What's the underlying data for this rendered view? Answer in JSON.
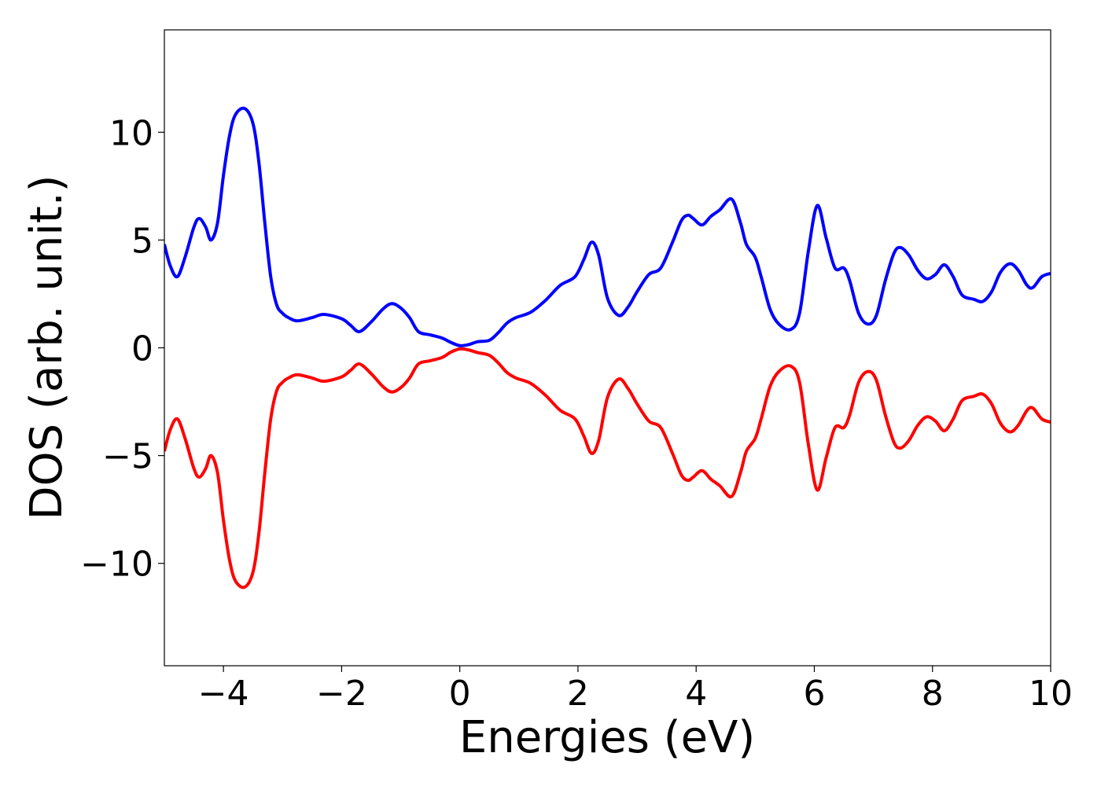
{
  "chart_data": {
    "type": "line",
    "xlabel": "Energies (eV)",
    "ylabel": "DOS (arb. unit.)",
    "x": [
      -5,
      -4.9,
      -4.78,
      -4.65,
      -4.5,
      -4.41,
      -4.3,
      -4.21,
      -4.1,
      -4.0,
      -3.9,
      -3.8,
      -3.64,
      -3.5,
      -3.4,
      -3.3,
      -3.2,
      -3.1,
      -3.0,
      -2.9,
      -2.75,
      -2.5,
      -2.3,
      -2.0,
      -1.85,
      -1.7,
      -1.5,
      -1.3,
      -1.15,
      -1.0,
      -0.85,
      -0.7,
      -0.5,
      -0.3,
      -0.15,
      0,
      0.15,
      0.3,
      0.5,
      0.65,
      0.8,
      0.95,
      1.2,
      1.45,
      1.7,
      1.95,
      2.1,
      2.23,
      2.35,
      2.5,
      2.69,
      2.85,
      3.0,
      3.2,
      3.4,
      3.6,
      3.75,
      3.86,
      3.95,
      4.1,
      4.25,
      4.4,
      4.6,
      4.75,
      4.85,
      5.0,
      5.1,
      5.25,
      5.4,
      5.6,
      5.75,
      5.9,
      6.05,
      6.2,
      6.35,
      6.5,
      6.6,
      6.75,
      6.91,
      7.05,
      7.2,
      7.35,
      7.46,
      7.6,
      7.75,
      7.9,
      8.05,
      8.2,
      8.35,
      8.5,
      8.7,
      8.85,
      9.0,
      9.15,
      9.31,
      9.45,
      9.6,
      9.7,
      9.85,
      10
    ],
    "series": [
      {
        "color": "#0000ff",
        "values": [
          4.8,
          3.8,
          3.3,
          4.2,
          5.6,
          6.0,
          5.6,
          5.0,
          5.8,
          8.0,
          9.8,
          10.8,
          11.1,
          10.4,
          8.6,
          5.8,
          3.3,
          2.0,
          1.6,
          1.4,
          1.25,
          1.4,
          1.55,
          1.35,
          1.05,
          0.75,
          1.2,
          1.8,
          2.05,
          1.85,
          1.4,
          0.75,
          0.6,
          0.45,
          0.25,
          0.1,
          0.15,
          0.28,
          0.35,
          0.7,
          1.15,
          1.4,
          1.65,
          2.2,
          2.9,
          3.3,
          4.1,
          4.9,
          4.3,
          2.3,
          1.5,
          1.9,
          2.6,
          3.4,
          3.7,
          4.9,
          5.9,
          6.15,
          6.0,
          5.7,
          6.1,
          6.4,
          6.9,
          5.8,
          4.8,
          4.2,
          3.3,
          1.8,
          1.1,
          0.85,
          1.6,
          4.5,
          6.6,
          5.1,
          3.7,
          3.7,
          3.1,
          1.6,
          1.1,
          1.5,
          3.1,
          4.4,
          4.65,
          4.3,
          3.6,
          3.2,
          3.4,
          3.85,
          3.3,
          2.45,
          2.25,
          2.15,
          2.6,
          3.5,
          3.9,
          3.6,
          2.9,
          2.8,
          3.3,
          3.45
        ]
      },
      {
        "color": "#ff0000",
        "values": [
          -4.8,
          -3.8,
          -3.3,
          -4.2,
          -5.6,
          -6.0,
          -5.6,
          -5.0,
          -5.8,
          -8.0,
          -9.8,
          -10.8,
          -11.1,
          -10.4,
          -8.6,
          -5.8,
          -3.3,
          -2.0,
          -1.6,
          -1.4,
          -1.25,
          -1.4,
          -1.55,
          -1.35,
          -1.05,
          -0.75,
          -1.2,
          -1.8,
          -2.05,
          -1.85,
          -1.4,
          -0.75,
          -0.6,
          -0.45,
          -0.2,
          -0.05,
          -0.1,
          -0.22,
          -0.35,
          -0.7,
          -1.15,
          -1.4,
          -1.65,
          -2.2,
          -2.9,
          -3.3,
          -4.1,
          -4.9,
          -4.3,
          -2.3,
          -1.45,
          -1.9,
          -2.6,
          -3.4,
          -3.7,
          -4.9,
          -5.9,
          -6.15,
          -6.0,
          -5.7,
          -6.1,
          -6.4,
          -6.9,
          -5.8,
          -4.8,
          -4.2,
          -3.3,
          -1.8,
          -1.1,
          -0.85,
          -1.6,
          -4.5,
          -6.6,
          -5.1,
          -3.7,
          -3.7,
          -3.1,
          -1.6,
          -1.1,
          -1.5,
          -3.1,
          -4.4,
          -4.65,
          -4.3,
          -3.6,
          -3.2,
          -3.4,
          -3.85,
          -3.3,
          -2.45,
          -2.25,
          -2.15,
          -2.6,
          -3.5,
          -3.9,
          -3.6,
          -2.9,
          -2.8,
          -3.3,
          -3.45
        ]
      }
    ],
    "xlim": [
      -5,
      10
    ],
    "xticks": [
      {
        "value": -4,
        "label": "−4"
      },
      {
        "value": -2,
        "label": "−2"
      },
      0,
      2,
      4,
      6,
      8,
      10
    ],
    "ylim": [
      -14.75,
      14.75
    ],
    "yticks": [
      {
        "value": -10,
        "label": "−10"
      },
      {
        "value": -5,
        "label": "−5"
      },
      0,
      5,
      10
    ],
    "grid": false
  }
}
